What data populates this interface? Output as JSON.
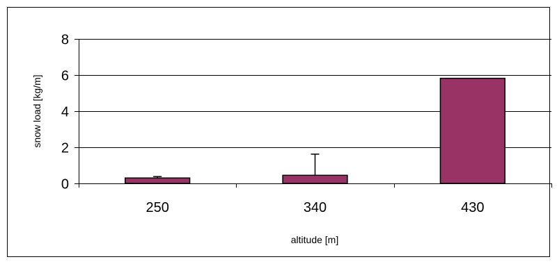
{
  "chart_data": {
    "type": "bar",
    "title": "",
    "xlabel": "altitude [m]",
    "ylabel": "snow load [kg/m]",
    "categories": [
      "250",
      "340",
      "430"
    ],
    "values": [
      0.3,
      0.45,
      5.82
    ],
    "error_upper": [
      0.38,
      1.62,
      null
    ],
    "ylim": [
      0,
      8
    ],
    "yticks": [
      0,
      2,
      4,
      6,
      8
    ],
    "ytick_labels": [
      "0",
      "2",
      "4",
      "6",
      "8"
    ],
    "grid": true,
    "legend": "none",
    "bar_color": "#993366",
    "bar_edge_color": "#000000"
  }
}
